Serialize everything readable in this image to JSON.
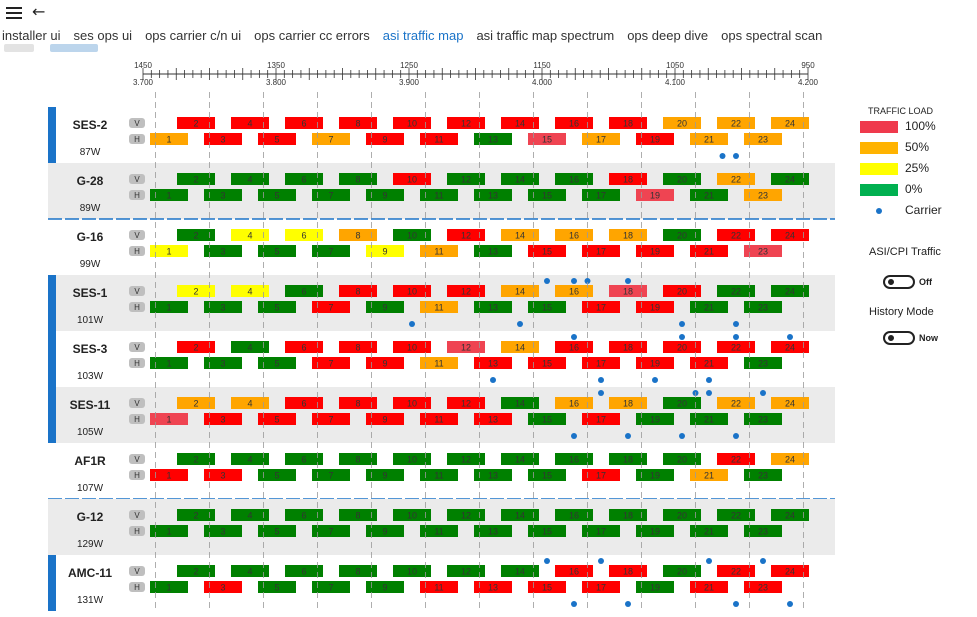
{
  "window": {
    "menu_icon": "hamburger-icon",
    "back_icon": "back-arrow-icon"
  },
  "tabs": [
    {
      "label": "installer ui",
      "active": false
    },
    {
      "label": "ses ops ui",
      "active": false
    },
    {
      "label": "ops carrier c/n ui",
      "active": false
    },
    {
      "label": "ops carrier cc errors",
      "active": false
    },
    {
      "label": "asi traffic map",
      "active": true
    },
    {
      "label": "asi traffic map spectrum",
      "active": false
    },
    {
      "label": "ops deep dive",
      "active": false
    },
    {
      "label": "ops spectral scan",
      "active": false
    }
  ],
  "axis": {
    "top_ticks": [
      {
        "label": "1450",
        "v": 0
      },
      {
        "label": "1350",
        "v": 4
      },
      {
        "label": "1250",
        "v": 8
      },
      {
        "label": "1150",
        "v": 12
      },
      {
        "label": "1050",
        "v": 16
      },
      {
        "label": "950",
        "v": 20
      }
    ],
    "bottom_ticks": [
      {
        "label": "3.700",
        "v": 0
      },
      {
        "label": "3.800",
        "v": 4
      },
      {
        "label": "3.900",
        "v": 8
      },
      {
        "label": "4.000",
        "v": 12
      },
      {
        "label": "4.100",
        "v": 16
      },
      {
        "label": "4.200",
        "v": 20
      }
    ]
  },
  "colors": {
    "100": "#ff0000",
    "50": "#ffa500",
    "25": "#ffff00",
    "0": "#008000",
    "carrier": "#1a73c8",
    "accent": "#1a73c8",
    "row_alt": "#ebebeb",
    "highlight": "#ef4452"
  },
  "legend": {
    "title": "TRAFFIC LOAD",
    "items": [
      {
        "label": "100%",
        "color": "#ef3a4d"
      },
      {
        "label": "50%",
        "color": "#ffb300"
      },
      {
        "label": "25%",
        "color": "#ffff00"
      },
      {
        "label": "0%",
        "color": "#00b050"
      }
    ],
    "carrier_label": "Carrier"
  },
  "toggles": {
    "asi": {
      "title": "ASI/CPI Traffic",
      "state": "Off"
    },
    "history": {
      "title": "History Mode",
      "state": "Now"
    }
  },
  "satellites": [
    {
      "name": "SES-2",
      "power": "87W",
      "marker": true,
      "bg": false,
      "v": "R R R R R R R R R O O O",
      "h": "O R R O R R G P O R O O",
      "v_dots": [],
      "h_dots": [
        21.5,
        22
      ]
    },
    {
      "name": "G-28",
      "power": "89W",
      "marker": false,
      "bg": true,
      "v": "G G G G R G G G R G O G",
      "h": "G G G G G G G G G P G O",
      "v_dots": [],
      "h_dots": [],
      "divider_after": true
    },
    {
      "name": "G-16",
      "power": "99W",
      "marker": false,
      "bg": false,
      "v": "G Y Y O G R O O O G R R",
      "h": "Y G G G Y O G R R R R P",
      "v_dots": [],
      "h_dots": []
    },
    {
      "name": "SES-1",
      "power": "101W",
      "marker": true,
      "bg": true,
      "v": "Y Y G R R R O O P R G G",
      "h": "G G G R G O G G R R G G",
      "v_dots": [
        15,
        16,
        16.5,
        18
      ],
      "h_dots": [
        10,
        14,
        20,
        22
      ]
    },
    {
      "name": "SES-3",
      "power": "103W",
      "marker": true,
      "bg": false,
      "v": "R G R R R P O R R R R R",
      "h": "G G G R R O R R R R R G",
      "v_dots": [
        16,
        20,
        22,
        24
      ],
      "h_dots": [
        13,
        17,
        19,
        21
      ]
    },
    {
      "name": "SES-11",
      "power": "105W",
      "marker": true,
      "bg": true,
      "v": "O O R R R R G O O G O O",
      "h": "P R R R R R R G R G G G",
      "v_dots": [
        17,
        20.5,
        21,
        23
      ],
      "h_dots": [
        16,
        18,
        20,
        22
      ]
    },
    {
      "name": "AF1R",
      "power": "107W",
      "marker": false,
      "bg": false,
      "v": "G G G G G G G G G G R O",
      "h": "R R G G G G G G R G O G",
      "v_dots": [],
      "h_dots": [],
      "divider_after": true
    },
    {
      "name": "G-12",
      "power": "129W",
      "marker": false,
      "bg": true,
      "v": "G G G G G G G G G G G G",
      "h": "G G G G G G G G G G G G",
      "v_dots": [],
      "h_dots": []
    },
    {
      "name": "AMC-11",
      "power": "131W",
      "marker": true,
      "bg": false,
      "v": "G G G G G G G R R G R R",
      "h": "G R G G G R R R R G R R",
      "v_dots": [
        15,
        17,
        21,
        23
      ],
      "h_dots": [
        16,
        18,
        22,
        24
      ]
    }
  ]
}
